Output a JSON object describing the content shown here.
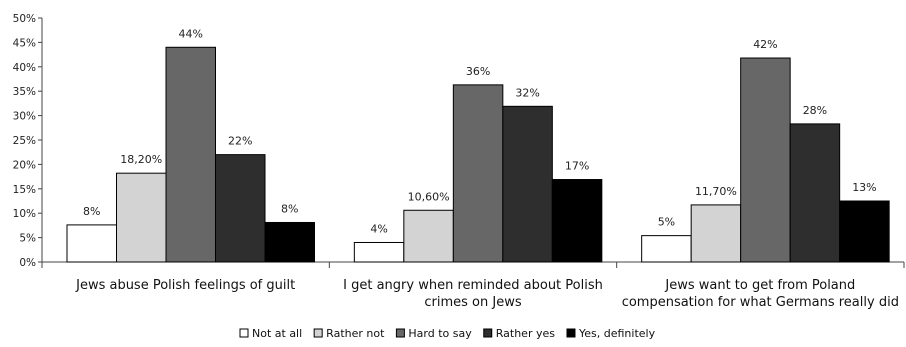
{
  "chart_data": {
    "type": "bar",
    "categories": [
      [
        "Jews abuse Polish feelings of guilt"
      ],
      [
        "I get angry when reminded about Polish",
        "crimes on Jews"
      ],
      [
        "Jews want to get from Poland",
        "compensation for what Germans really did"
      ]
    ],
    "series": [
      {
        "name": "Not at all",
        "color": "#ffffff",
        "values": [
          7.6,
          4.0,
          5.4
        ],
        "labels": [
          "8%",
          "4%",
          "5%"
        ]
      },
      {
        "name": "Rather not",
        "color": "#d3d3d3",
        "values": [
          18.2,
          10.6,
          11.7
        ],
        "labels": [
          "18,20%",
          "10,60%",
          "11,70%"
        ]
      },
      {
        "name": "Hard to say",
        "color": "#676767",
        "values": [
          44,
          36.3,
          41.8
        ],
        "labels": [
          "44%",
          "36%",
          "42%"
        ]
      },
      {
        "name": "Rather yes",
        "color": "#2e2e2e",
        "values": [
          22,
          31.9,
          28.3
        ],
        "labels": [
          "22%",
          "32%",
          "28%"
        ]
      },
      {
        "name": "Yes, definitely",
        "color": "#000000",
        "values": [
          8.1,
          16.9,
          12.5
        ],
        "labels": [
          "8%",
          "17%",
          "13%"
        ]
      }
    ],
    "y_ticks": [
      "0%",
      "5%",
      "10%",
      "15%",
      "20%",
      "25%",
      "30%",
      "35%",
      "40%",
      "45%",
      "50%"
    ],
    "ylim": [
      0,
      50
    ],
    "grid": false,
    "legend_position": "bottom"
  }
}
